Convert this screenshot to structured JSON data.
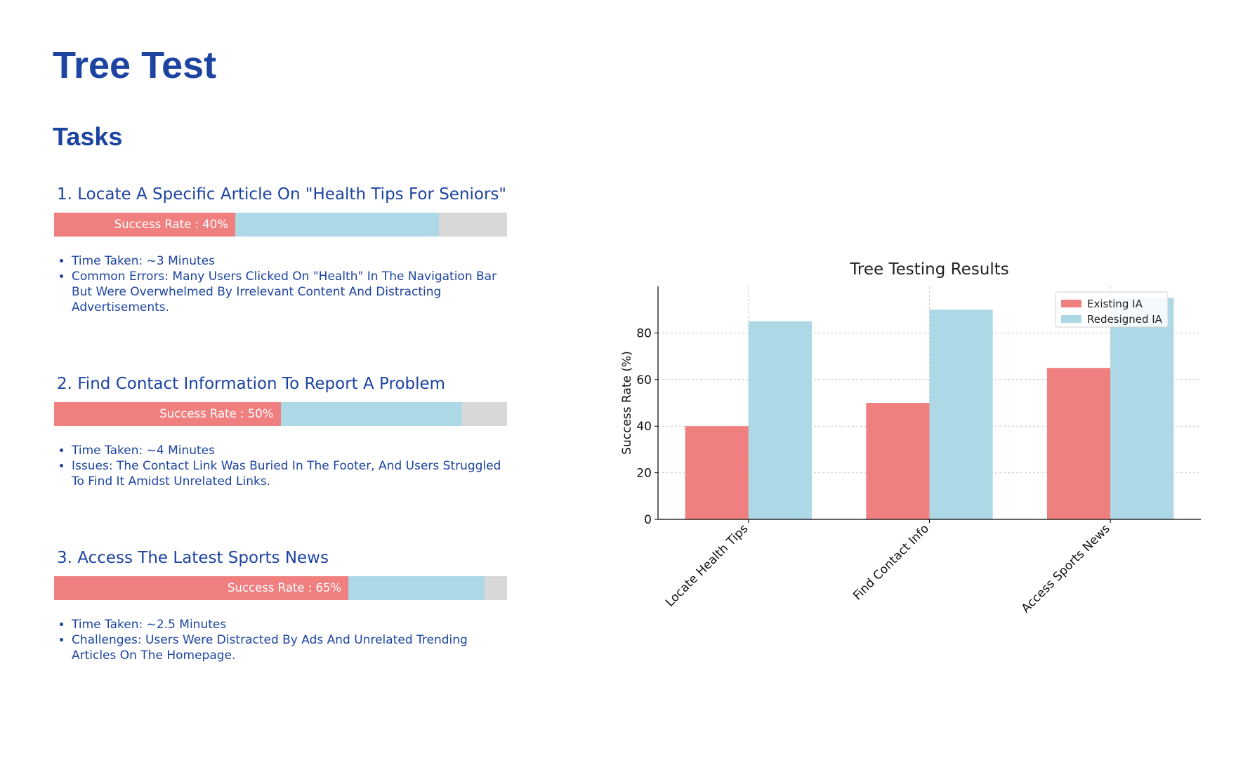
{
  "page": {
    "title": "Tree Test",
    "section_title": "Tasks"
  },
  "colors": {
    "heading": "#1c44a0",
    "existing": "#f08080",
    "redesigned": "#add8e6",
    "track": "#d8d8d8"
  },
  "tasks": [
    {
      "heading": "1. Locate A Specific Article On \"Health Tips For Seniors\"",
      "success_label": "Success Rate : 40%",
      "existing_rate": 40,
      "redesigned_rate": 85,
      "notes": [
        "Time Taken: ~3 Minutes",
        "Common Errors: Many Users Clicked On \"Health\" In The Navigation Bar But Were Overwhelmed By Irrelevant Content And Distracting Advertisements."
      ]
    },
    {
      "heading": "2. Find Contact Information To Report A Problem",
      "success_label": "Success Rate : 50%",
      "existing_rate": 50,
      "redesigned_rate": 90,
      "notes": [
        "Time Taken: ~4 Minutes",
        "Issues: The Contact Link Was Buried In The Footer, And Users Struggled To Find It Amidst Unrelated Links."
      ]
    },
    {
      "heading": "3. Access The Latest Sports News",
      "success_label": "Success Rate : 65%",
      "existing_rate": 65,
      "redesigned_rate": 95,
      "notes": [
        "Time Taken: ~2.5 Minutes",
        "Challenges: Users Were Distracted By Ads And Unrelated Trending Articles On The Homepage."
      ]
    }
  ],
  "chart_data": {
    "type": "bar",
    "title": "Tree Testing Results",
    "xlabel": "",
    "ylabel": "Success Rate (%)",
    "categories": [
      "Locate Health Tips",
      "Find Contact Info",
      "Access Sports News"
    ],
    "series": [
      {
        "name": "Existing IA",
        "color": "#f08080",
        "values": [
          40,
          50,
          65
        ]
      },
      {
        "name": "Redesigned IA",
        "color": "#add8e6",
        "values": [
          85,
          90,
          95
        ]
      }
    ],
    "ylim": [
      0,
      100
    ],
    "yticks": [
      0,
      20,
      40,
      60,
      80
    ],
    "grid": true,
    "legend_position": "top-right"
  }
}
